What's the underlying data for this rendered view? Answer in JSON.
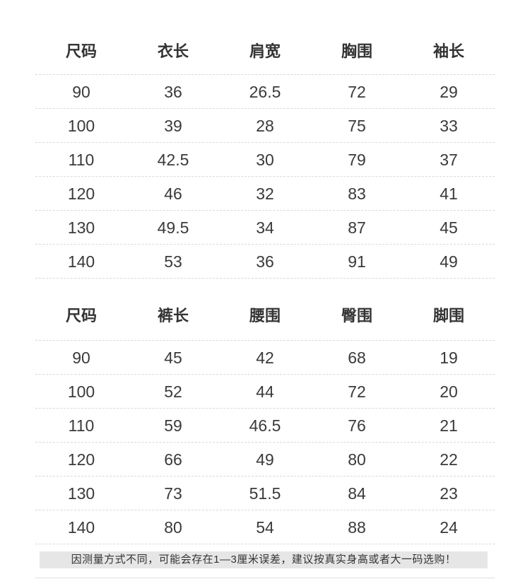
{
  "tables": [
    {
      "headers": [
        "尺码",
        "衣长",
        "肩宽",
        "胸围",
        "袖长"
      ],
      "rows": [
        [
          "90",
          "36",
          "26.5",
          "72",
          "29"
        ],
        [
          "100",
          "39",
          "28",
          "75",
          "33"
        ],
        [
          "110",
          "42.5",
          "30",
          "79",
          "37"
        ],
        [
          "120",
          "46",
          "32",
          "83",
          "41"
        ],
        [
          "130",
          "49.5",
          "34",
          "87",
          "45"
        ],
        [
          "140",
          "53",
          "36",
          "91",
          "49"
        ]
      ]
    },
    {
      "headers": [
        "尺码",
        "裤长",
        "腰围",
        "臀围",
        "脚围"
      ],
      "rows": [
        [
          "90",
          "45",
          "42",
          "68",
          "19"
        ],
        [
          "100",
          "52",
          "44",
          "72",
          "20"
        ],
        [
          "110",
          "59",
          "46.5",
          "76",
          "21"
        ],
        [
          "120",
          "66",
          "49",
          "80",
          "22"
        ],
        [
          "130",
          "73",
          "51.5",
          "84",
          "23"
        ],
        [
          "140",
          "80",
          "54",
          "88",
          "24"
        ]
      ]
    }
  ],
  "note": "因测量方式不同，可能会存在1—3厘米误差，建议按真实身高或者大一码选购！"
}
